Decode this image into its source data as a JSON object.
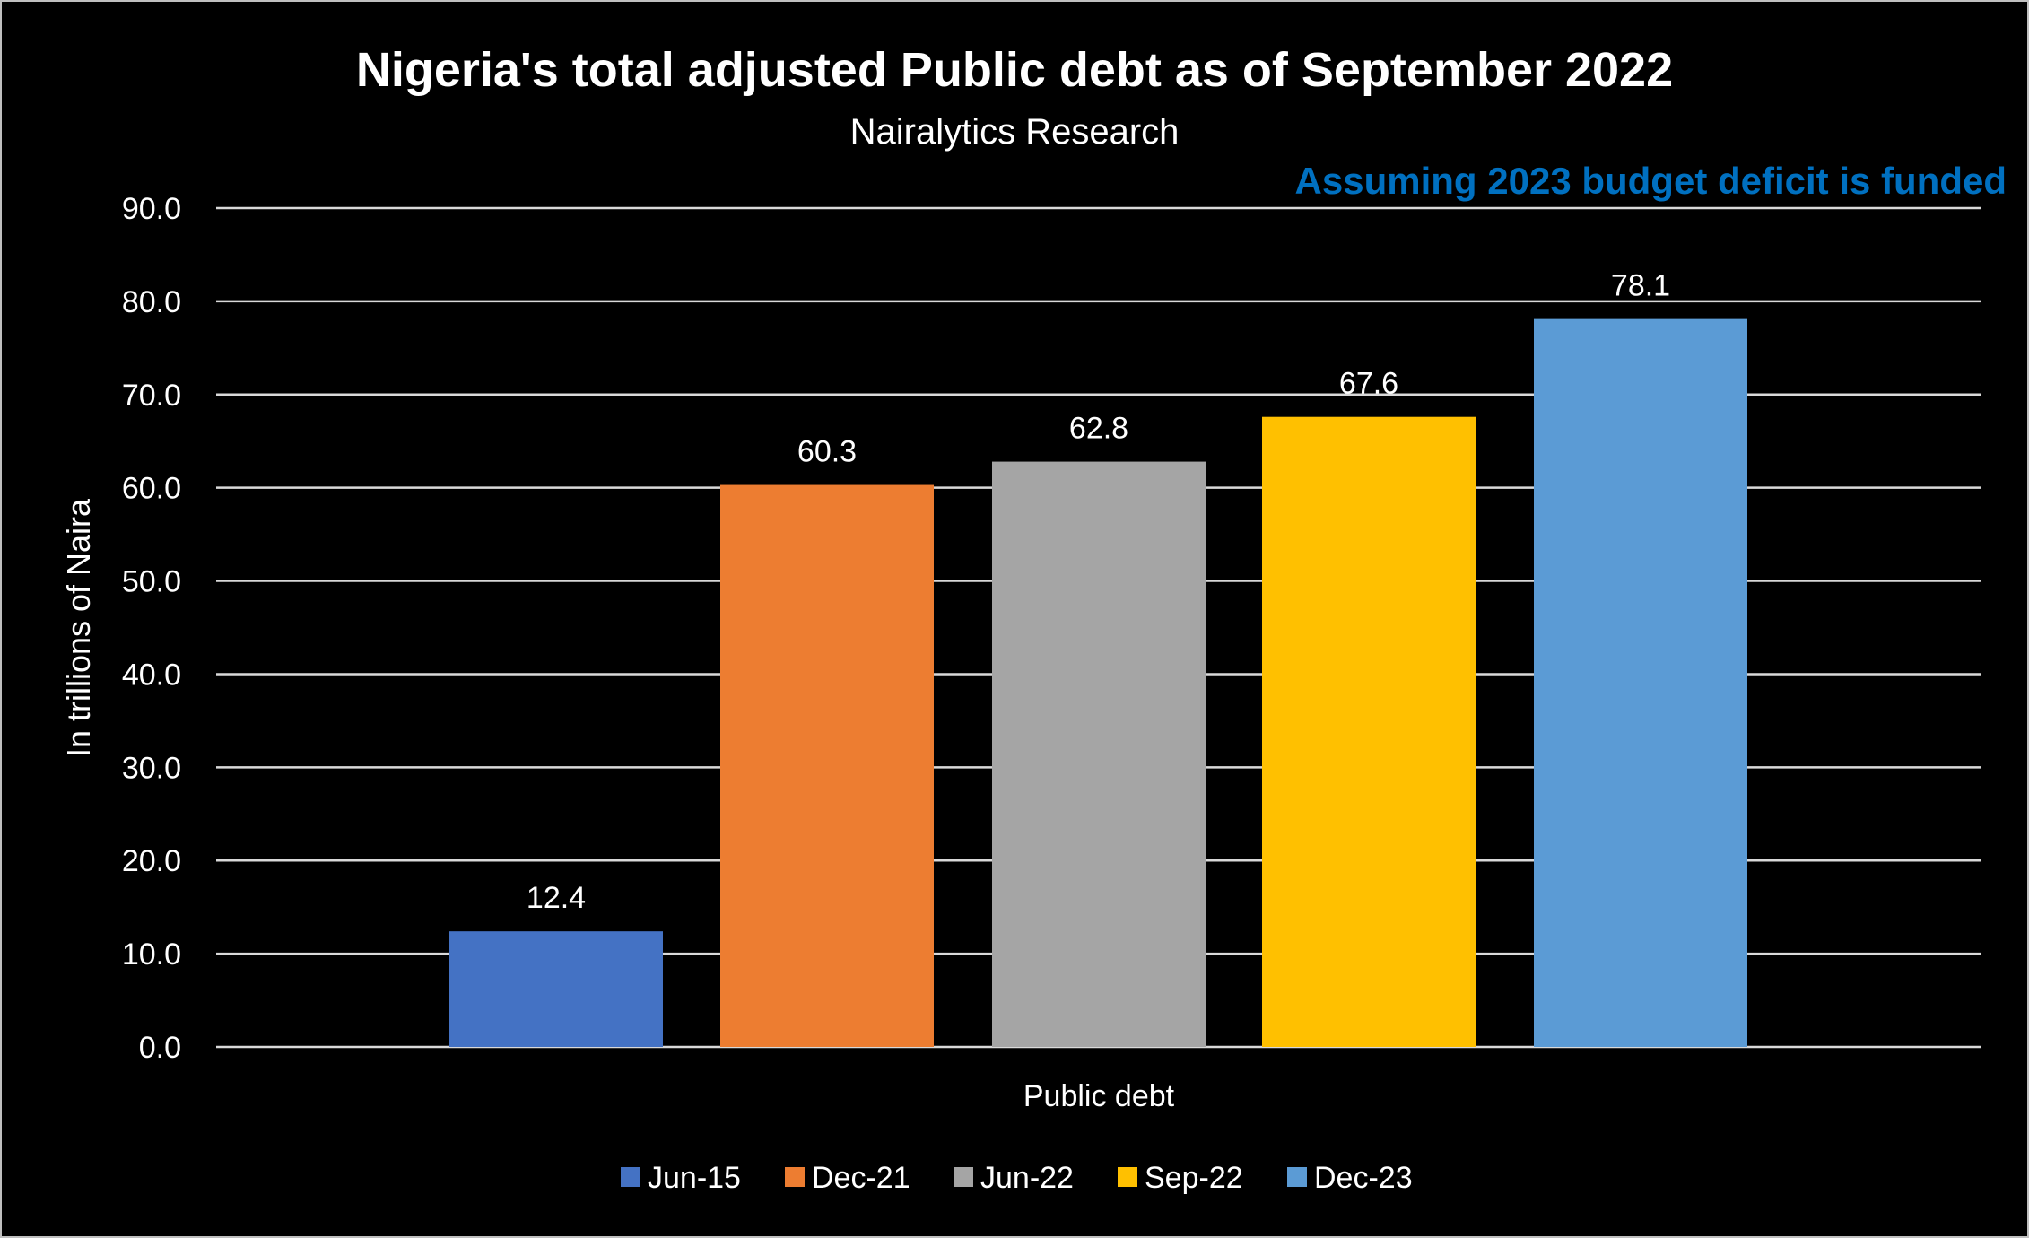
{
  "chart_data": {
    "type": "bar",
    "title": "Nigeria's total adjusted Public debt as of September 2022",
    "subtitle": "Nairalytics Research",
    "annotation": "Assuming 2023 budget deficit is funded",
    "xlabel": "Public debt",
    "ylabel": "In trillions of Naira",
    "ylim": [
      0,
      90
    ],
    "yticks": [
      "0.0",
      "10.0",
      "20.0",
      "30.0",
      "40.0",
      "50.0",
      "60.0",
      "70.0",
      "80.0",
      "90.0"
    ],
    "grid": true,
    "legend_position": "bottom",
    "categories": [
      "Public debt"
    ],
    "series": [
      {
        "name": "Jun-15",
        "values": [
          12.4
        ],
        "label": "12.4",
        "color": "#4472C4"
      },
      {
        "name": "Dec-21",
        "values": [
          60.3
        ],
        "label": "60.3",
        "color": "#ED7D31"
      },
      {
        "name": "Jun-22",
        "values": [
          62.8
        ],
        "label": "62.8",
        "color": "#A5A5A5"
      },
      {
        "name": "Sep-22",
        "values": [
          67.6
        ],
        "label": "67.6",
        "color": "#FFC000"
      },
      {
        "name": "Dec-23",
        "values": [
          78.1
        ],
        "label": "78.1",
        "color": "#5B9BD5"
      }
    ],
    "colors": {
      "background": "#000000",
      "text": "#FFFFFF",
      "grid": "#D9D9D9",
      "annotation": "#0070C0"
    }
  }
}
